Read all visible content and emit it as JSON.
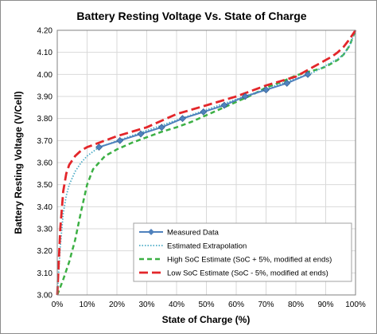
{
  "chart_data": {
    "type": "line",
    "title": "Battery Resting Voltage Vs. State of Charge",
    "xlabel": "State of Charge (%)",
    "ylabel": "Battery Resting Voltage (V/Cell)",
    "xlim": [
      0,
      100
    ],
    "ylim": [
      3.0,
      4.2
    ],
    "x_ticks": [
      "0%",
      "10%",
      "20%",
      "30%",
      "40%",
      "50%",
      "60%",
      "70%",
      "80%",
      "90%",
      "100%"
    ],
    "y_ticks": [
      "3.00",
      "3.10",
      "3.20",
      "3.30",
      "3.40",
      "3.50",
      "3.60",
      "3.70",
      "3.80",
      "3.90",
      "4.00",
      "4.10",
      "4.20"
    ],
    "grid": true,
    "legend_position": "bottom-right",
    "series": [
      {
        "name": "Measured Data",
        "color": "#4f81bd",
        "style": "solid-marker",
        "x": [
          14,
          21,
          28,
          35,
          42,
          49,
          56,
          63,
          70,
          77,
          84
        ],
        "y": [
          3.67,
          3.7,
          3.73,
          3.76,
          3.8,
          3.83,
          3.86,
          3.9,
          3.93,
          3.96,
          4.0
        ]
      },
      {
        "name": "Estimated Extrapolation",
        "color": "#4bacc6",
        "style": "dotted",
        "x": [
          0,
          1,
          2,
          3,
          4,
          5,
          6,
          8,
          10,
          12,
          14,
          84,
          86,
          88,
          90,
          92,
          94,
          96,
          98,
          100
        ],
        "y": [
          3.0,
          3.22,
          3.37,
          3.45,
          3.5,
          3.53,
          3.56,
          3.6,
          3.63,
          3.65,
          3.67,
          4.0,
          4.01,
          4.025,
          4.04,
          4.055,
          4.07,
          4.09,
          4.13,
          4.2
        ]
      },
      {
        "name": "High SoC Estimate (SoC + 5%, modified at ends)",
        "color": "#3cb044",
        "style": "dashed",
        "x": [
          0,
          2,
          4,
          6,
          8,
          10,
          12,
          14,
          16,
          18,
          20,
          25,
          30,
          35,
          40,
          45,
          50,
          55,
          60,
          65,
          70,
          75,
          80,
          85,
          88,
          90,
          92,
          94,
          96,
          98,
          100
        ],
        "y": [
          3.0,
          3.07,
          3.15,
          3.25,
          3.38,
          3.5,
          3.57,
          3.6,
          3.63,
          3.645,
          3.66,
          3.69,
          3.715,
          3.74,
          3.76,
          3.785,
          3.815,
          3.845,
          3.875,
          3.905,
          3.94,
          3.965,
          3.995,
          4.015,
          4.025,
          4.035,
          4.05,
          4.065,
          4.09,
          4.13,
          4.2
        ]
      },
      {
        "name": "Low SoC Estimate (SoC - 5%, modified at ends)",
        "color": "#e3262a",
        "style": "longdash",
        "x": [
          0,
          1,
          2,
          3,
          4,
          5,
          6,
          8,
          10,
          12,
          14,
          20,
          30,
          40,
          50,
          60,
          70,
          80,
          84,
          86,
          88,
          90,
          92,
          94,
          96,
          98,
          100
        ],
        "y": [
          3.0,
          3.3,
          3.47,
          3.55,
          3.59,
          3.61,
          3.63,
          3.655,
          3.67,
          3.68,
          3.69,
          3.72,
          3.76,
          3.82,
          3.86,
          3.9,
          3.95,
          3.99,
          4.02,
          4.035,
          4.05,
          4.065,
          4.08,
          4.1,
          4.125,
          4.16,
          4.2
        ]
      }
    ]
  }
}
